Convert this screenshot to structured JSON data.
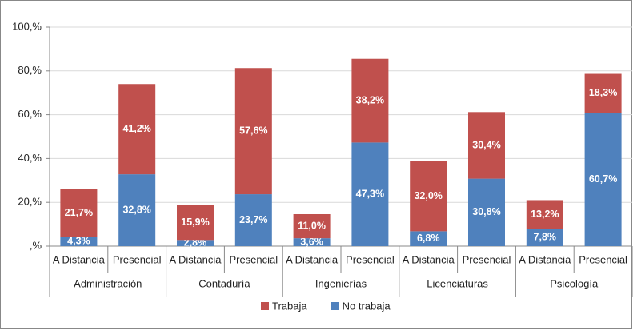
{
  "chart_data": {
    "type": "stacked_bar",
    "categories": [
      "A Distancia",
      "Presencial",
      "A Distancia",
      "Presencial",
      "A Distancia",
      "Presencial",
      "A Distancia",
      "Presencial",
      "A Distancia",
      "Presencial"
    ],
    "groups": [
      "Administración",
      "Contaduría",
      "Ingenierías",
      "Licenciaturas",
      "Psicología"
    ],
    "series": [
      {
        "name": "Trabaja",
        "color": "#c0504d",
        "values": [
          21.7,
          41.2,
          15.9,
          57.6,
          11.0,
          38.2,
          32.0,
          30.4,
          13.2,
          18.3
        ],
        "value_labels": [
          "21,7%",
          "41,2%",
          "15,9%",
          "57,6%",
          "11,0%",
          "38,2%",
          "32,0%",
          "30,4%",
          "13,2%",
          "18,3%"
        ]
      },
      {
        "name": "No trabaja",
        "color": "#4f81bd",
        "values": [
          4.3,
          32.8,
          2.8,
          23.7,
          3.6,
          47.3,
          6.8,
          30.8,
          7.8,
          60.7
        ],
        "value_labels": [
          "4,3%",
          "32,8%",
          "2,8%",
          "23,7%",
          "3,6%",
          "47,3%",
          "6,8%",
          "30,8%",
          "7,8%",
          "60,7%"
        ]
      }
    ],
    "ylim": [
      0,
      100
    ],
    "yticks": [
      {
        "value": 0,
        "label": ",%"
      },
      {
        "value": 20,
        "label": "20,%"
      },
      {
        "value": 40,
        "label": "40,%"
      },
      {
        "value": 60,
        "label": "60,%"
      },
      {
        "value": 80,
        "label": "80,%"
      },
      {
        "value": 100,
        "label": "100,%"
      }
    ],
    "grid": true,
    "legend": "bottom"
  }
}
